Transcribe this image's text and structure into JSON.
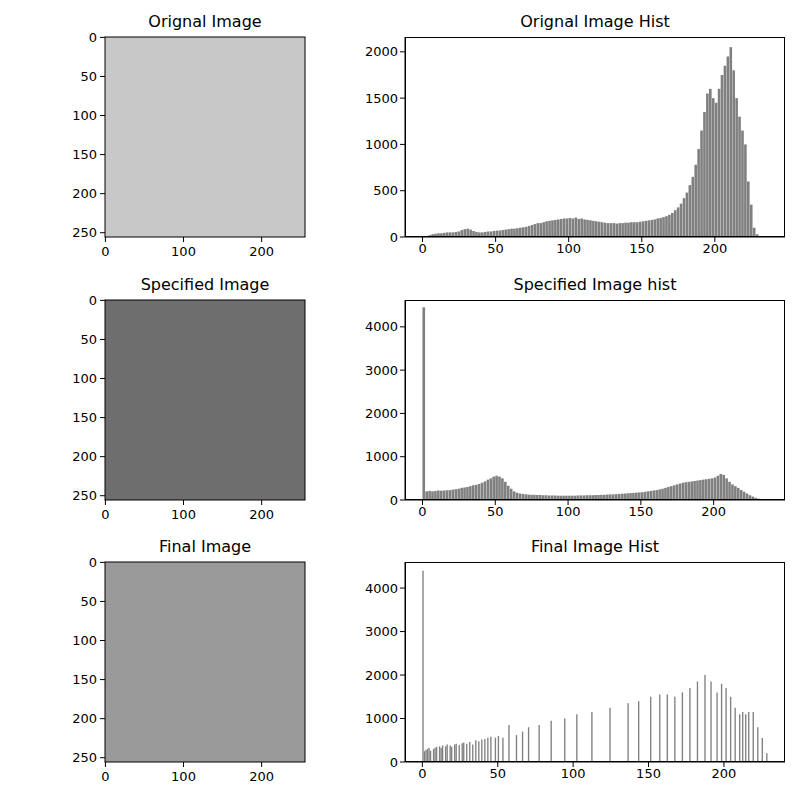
{
  "chart_data": [
    {
      "type": "image",
      "title": "Orignal Image",
      "xlim": [
        -0.5,
        255.5
      ],
      "ylim": [
        255.5,
        -0.5
      ],
      "xticks": [
        0,
        100,
        200
      ],
      "yticks": [
        0,
        50,
        100,
        150,
        200,
        250
      ]
    },
    {
      "type": "histogram",
      "title": "Orignal Image Hist",
      "color": "#808080",
      "xlim": [
        -12,
        248
      ],
      "ylim": [
        0,
        2160
      ],
      "xticks": [
        0,
        50,
        100,
        150,
        200
      ],
      "yticks": [
        0,
        500,
        1000,
        1500,
        2000
      ],
      "bins": [
        0,
        2,
        4,
        6,
        8,
        10,
        12,
        14,
        16,
        18,
        20,
        22,
        24,
        26,
        28,
        30,
        32,
        34,
        36,
        38,
        40,
        42,
        44,
        46,
        48,
        50,
        52,
        54,
        56,
        58,
        60,
        62,
        64,
        66,
        68,
        70,
        72,
        74,
        76,
        78,
        80,
        82,
        84,
        86,
        88,
        90,
        92,
        94,
        96,
        98,
        100,
        102,
        104,
        106,
        108,
        110,
        112,
        114,
        116,
        118,
        120,
        122,
        124,
        126,
        128,
        130,
        132,
        134,
        136,
        138,
        140,
        142,
        144,
        146,
        148,
        150,
        152,
        154,
        156,
        158,
        160,
        162,
        164,
        166,
        168,
        170,
        172,
        174,
        176,
        178,
        180,
        182,
        184,
        186,
        188,
        190,
        192,
        194,
        196,
        198,
        200,
        202,
        204,
        206,
        208,
        210,
        212,
        214,
        216,
        218,
        220,
        222,
        224,
        226,
        228,
        230,
        232,
        234,
        236
      ],
      "values": [
        5,
        10,
        20,
        30,
        35,
        40,
        40,
        45,
        50,
        50,
        50,
        55,
        60,
        75,
        85,
        90,
        80,
        65,
        55,
        50,
        50,
        55,
        60,
        60,
        65,
        70,
        70,
        75,
        80,
        85,
        90,
        90,
        95,
        100,
        105,
        110,
        120,
        130,
        140,
        150,
        150,
        160,
        170,
        175,
        180,
        185,
        190,
        195,
        200,
        200,
        205,
        200,
        210,
        195,
        200,
        190,
        185,
        180,
        175,
        170,
        165,
        160,
        155,
        150,
        150,
        150,
        145,
        150,
        150,
        155,
        155,
        160,
        160,
        160,
        165,
        170,
        175,
        180,
        185,
        190,
        200,
        205,
        215,
        225,
        240,
        260,
        290,
        320,
        360,
        420,
        480,
        560,
        650,
        780,
        950,
        1150,
        1350,
        1550,
        1600,
        1500,
        1450,
        1600,
        1750,
        1850,
        1950,
        2050,
        1800,
        1500,
        1300,
        1150,
        1000,
        600,
        350,
        100,
        30,
        10,
        0,
        0
      ]
    },
    {
      "type": "image",
      "title": "Specified Image",
      "xlim": [
        -0.5,
        255.5
      ],
      "ylim": [
        255.5,
        -0.5
      ],
      "xticks": [
        0,
        100,
        200
      ],
      "yticks": [
        0,
        50,
        100,
        150,
        200,
        250
      ]
    },
    {
      "type": "histogram",
      "title": "Specified Image hist",
      "color": "#808080",
      "xlim": [
        -12,
        249
      ],
      "ylim": [
        0,
        4620
      ],
      "xticks": [
        0,
        50,
        100,
        150,
        200
      ],
      "yticks": [
        0,
        1000,
        2000,
        3000,
        4000
      ],
      "bins": [
        0,
        2,
        4,
        6,
        8,
        10,
        12,
        14,
        16,
        18,
        20,
        22,
        24,
        26,
        28,
        30,
        32,
        34,
        36,
        38,
        40,
        42,
        44,
        46,
        48,
        50,
        52,
        54,
        56,
        58,
        60,
        62,
        64,
        66,
        68,
        70,
        72,
        74,
        76,
        78,
        80,
        82,
        84,
        86,
        88,
        90,
        92,
        94,
        96,
        98,
        100,
        102,
        104,
        106,
        108,
        110,
        112,
        114,
        116,
        118,
        120,
        122,
        124,
        126,
        128,
        130,
        132,
        134,
        136,
        138,
        140,
        142,
        144,
        146,
        148,
        150,
        152,
        154,
        156,
        158,
        160,
        162,
        164,
        166,
        168,
        170,
        172,
        174,
        176,
        178,
        180,
        182,
        184,
        186,
        188,
        190,
        192,
        194,
        196,
        198,
        200,
        202,
        204,
        206,
        208,
        210,
        212,
        214,
        216,
        218,
        220,
        222,
        224,
        226,
        228,
        230,
        232,
        234,
        236,
        238,
        240
      ],
      "values": [
        4450,
        200,
        210,
        200,
        210,
        220,
        215,
        220,
        225,
        230,
        240,
        250,
        260,
        280,
        290,
        300,
        320,
        340,
        350,
        370,
        400,
        430,
        470,
        500,
        540,
        560,
        540,
        500,
        420,
        330,
        260,
        200,
        170,
        150,
        140,
        130,
        125,
        120,
        120,
        115,
        115,
        110,
        110,
        105,
        105,
        105,
        100,
        100,
        100,
        100,
        100,
        100,
        100,
        105,
        105,
        105,
        110,
        110,
        110,
        115,
        115,
        120,
        120,
        125,
        130,
        130,
        135,
        140,
        145,
        150,
        155,
        160,
        165,
        170,
        175,
        180,
        190,
        200,
        210,
        220,
        230,
        245,
        260,
        280,
        300,
        320,
        340,
        360,
        380,
        400,
        410,
        420,
        430,
        440,
        450,
        460,
        470,
        480,
        490,
        500,
        520,
        560,
        600,
        580,
        500,
        420,
        360,
        320,
        280,
        230,
        190,
        150,
        110,
        80,
        50,
        30,
        15,
        8,
        3,
        0
      ]
    },
    {
      "type": "image",
      "title": "Final Image",
      "xlim": [
        -0.5,
        255.5
      ],
      "ylim": [
        255.5,
        -0.5
      ],
      "xticks": [
        0,
        100,
        200
      ],
      "yticks": [
        0,
        50,
        100,
        150,
        200,
        250
      ]
    },
    {
      "type": "histogram",
      "title": "Final Image Hist",
      "color": "#808080",
      "xlim": [
        -11.5,
        240.5
      ],
      "ylim": [
        0,
        4600
      ],
      "xticks": [
        0,
        50,
        100,
        150,
        200
      ],
      "yticks": [
        0,
        1000,
        2000,
        3000,
        4000
      ],
      "bins": [
        0,
        1,
        2,
        3,
        4,
        5,
        6,
        7,
        8,
        9,
        10,
        11,
        12,
        13,
        14,
        15,
        16,
        17,
        18,
        19,
        20,
        21,
        22,
        23,
        24,
        25,
        26,
        27,
        28,
        29,
        30,
        31,
        32,
        33,
        34,
        35,
        36,
        37,
        38,
        39,
        40,
        41,
        42,
        43,
        44,
        45,
        46,
        47,
        48,
        49,
        50,
        51,
        52,
        53,
        54,
        55,
        56,
        57,
        58,
        59,
        60,
        61,
        62,
        63,
        64,
        65,
        66,
        67,
        68,
        69,
        70,
        71,
        72,
        73,
        74,
        75,
        76,
        77,
        78,
        79,
        80,
        81,
        82,
        83,
        84,
        85,
        86,
        87,
        88,
        89,
        90,
        91,
        92,
        93,
        94,
        95,
        96,
        97,
        98,
        99,
        100,
        101,
        102,
        103,
        104,
        105,
        106,
        107,
        108,
        109,
        110,
        111,
        112,
        113,
        114,
        115,
        116,
        117,
        118,
        119,
        120,
        121,
        122,
        123,
        124,
        125,
        126,
        127,
        128,
        129,
        130,
        131,
        132,
        133,
        134,
        135,
        136,
        137,
        138,
        139,
        140,
        141,
        142,
        143,
        144,
        145,
        146,
        147,
        148,
        149,
        150,
        151,
        152,
        153,
        154,
        155,
        156,
        157,
        158,
        159,
        160,
        161,
        162,
        163,
        164,
        165,
        166,
        167,
        168,
        169,
        170,
        171,
        172,
        173,
        174,
        175,
        176,
        177,
        178,
        179,
        180,
        181,
        182,
        183,
        184,
        185,
        186,
        187,
        188,
        189,
        190,
        191,
        192,
        193,
        194,
        195,
        196,
        197,
        198,
        199,
        200,
        201,
        202,
        203,
        204,
        205,
        206,
        207,
        208,
        209,
        210,
        211,
        212,
        213,
        214,
        215,
        216,
        217,
        218,
        219,
        220,
        221,
        222,
        223,
        224,
        225,
        226,
        227,
        228,
        229,
        230
      ],
      "values": [
        4400,
        250,
        280,
        300,
        320,
        260,
        0,
        300,
        330,
        350,
        0,
        360,
        320,
        380,
        0,
        360,
        400,
        0,
        380,
        350,
        0,
        400,
        420,
        0,
        390,
        0,
        430,
        450,
        0,
        420,
        0,
        460,
        0,
        400,
        0,
        500,
        0,
        480,
        0,
        520,
        0,
        530,
        0,
        560,
        0,
        580,
        0,
        0,
        560,
        0,
        600,
        0,
        0,
        560,
        0,
        0,
        0,
        850,
        0,
        0,
        0,
        0,
        620,
        0,
        0,
        0,
        700,
        0,
        0,
        0,
        800,
        0,
        0,
        0,
        0,
        0,
        0,
        850,
        0,
        0,
        0,
        0,
        0,
        0,
        0,
        950,
        0,
        0,
        0,
        0,
        0,
        0,
        0,
        0,
        1000,
        0,
        0,
        0,
        0,
        0,
        0,
        0,
        1100,
        0,
        0,
        0,
        0,
        0,
        0,
        0,
        0,
        0,
        1150,
        0,
        0,
        0,
        0,
        0,
        0,
        0,
        0,
        0,
        0,
        0,
        1250,
        0,
        0,
        0,
        0,
        0,
        0,
        0,
        0,
        0,
        0,
        0,
        1350,
        0,
        0,
        0,
        0,
        0,
        0,
        1400,
        0,
        0,
        0,
        0,
        0,
        0,
        0,
        1500,
        0,
        0,
        0,
        0,
        0,
        1550,
        0,
        0,
        0,
        0,
        1550,
        0,
        0,
        0,
        0,
        1500,
        0,
        0,
        0,
        0,
        1600,
        0,
        0,
        0,
        0,
        1700,
        0,
        0,
        0,
        0,
        1850,
        0,
        0,
        0,
        0,
        2000,
        0,
        0,
        0,
        1850,
        0,
        0,
        0,
        1600,
        0,
        0,
        1800,
        0,
        0,
        1700,
        0,
        0,
        1500,
        0,
        0,
        1250,
        0,
        0,
        1100,
        0,
        1150,
        0,
        1100,
        0,
        1150,
        0,
        0,
        1150,
        0,
        0,
        800,
        0,
        0,
        550,
        0,
        0,
        200,
        0
      ]
    }
  ]
}
